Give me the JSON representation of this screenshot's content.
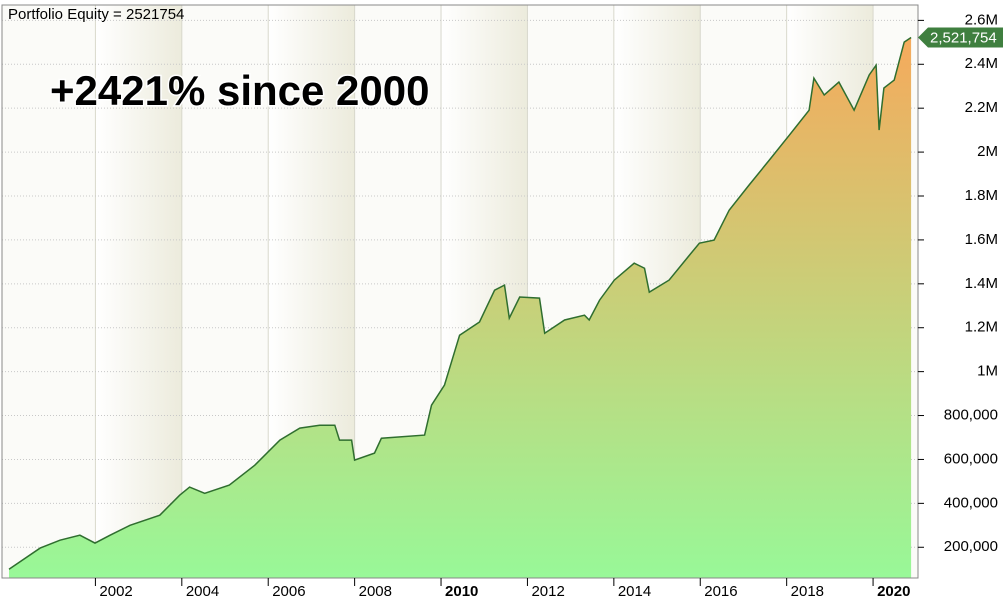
{
  "chart_data": {
    "type": "area",
    "title": "Portfolio Equity = 2521754",
    "annotation": "+2421% since 2000",
    "x": [
      2000.0,
      2000.72,
      2001.18,
      2001.64,
      2001.99,
      2002.34,
      2002.8,
      2003.49,
      2003.95,
      2004.18,
      2004.53,
      2005.1,
      2005.69,
      2006.27,
      2006.73,
      2007.19,
      2007.54,
      2007.65,
      2007.93,
      2008.0,
      2008.46,
      2008.62,
      2009.62,
      2009.78,
      2010.08,
      2010.43,
      2010.89,
      2011.24,
      2011.47,
      2011.58,
      2011.82,
      2012.28,
      2012.4,
      2012.86,
      2013.32,
      2013.43,
      2013.67,
      2014.01,
      2014.47,
      2014.71,
      2014.82,
      2015.28,
      2015.75,
      2015.98,
      2016.32,
      2016.67,
      2017.13,
      2017.6,
      2018.06,
      2018.52,
      2018.63,
      2018.87,
      2019.21,
      2019.56,
      2019.91,
      2020.07,
      2020.14,
      2020.25,
      2020.49,
      2020.72,
      2020.88
    ],
    "values": [
      100000,
      196000,
      232000,
      255000,
      219000,
      255000,
      300000,
      346000,
      437000,
      474000,
      446000,
      483000,
      574000,
      688000,
      743000,
      756000,
      756000,
      688000,
      688000,
      597000,
      629000,
      697000,
      711000,
      847000,
      939000,
      1166000,
      1226000,
      1371000,
      1394000,
      1244000,
      1340000,
      1335000,
      1175000,
      1235000,
      1257000,
      1235000,
      1326000,
      1417000,
      1494000,
      1471000,
      1362000,
      1417000,
      1531000,
      1585000,
      1599000,
      1736000,
      1850000,
      1964000,
      2077000,
      2191000,
      2337000,
      2260000,
      2319000,
      2191000,
      2351000,
      2396000,
      2100000,
      2292000,
      2328000,
      2501000,
      2521754
    ],
    "last_label": {
      "value": 2521754,
      "label": "2,521,754"
    },
    "line_color": "#2f6e2f",
    "fill_top": "#f5aa5c",
    "fill_bottom": "#98f898",
    "tag_color": "#3f7f3f",
    "xlim": [
      2000,
      2021.04
    ],
    "xticks": [
      2002,
      2004,
      2006,
      2008,
      2010,
      2012,
      2014,
      2016,
      2018,
      2020
    ],
    "ylim": [
      60000,
      2670000
    ],
    "yticks": [
      {
        "value": 200000,
        "label": "200,000"
      },
      {
        "value": 400000,
        "label": "400,000"
      },
      {
        "value": 600000,
        "label": "600,000"
      },
      {
        "value": 800000,
        "label": "800,000"
      },
      {
        "value": 1000000,
        "label": "1M"
      },
      {
        "value": 1200000,
        "label": "1.2M"
      },
      {
        "value": 1400000,
        "label": "1.4M"
      },
      {
        "value": 1600000,
        "label": "1.6M"
      },
      {
        "value": 1800000,
        "label": "1.8M"
      },
      {
        "value": 2000000,
        "label": "2M"
      },
      {
        "value": 2200000,
        "label": "2.2M"
      },
      {
        "value": 2400000,
        "label": "2.4M"
      },
      {
        "value": 2600000,
        "label": "2.6M"
      }
    ],
    "grid": true
  }
}
